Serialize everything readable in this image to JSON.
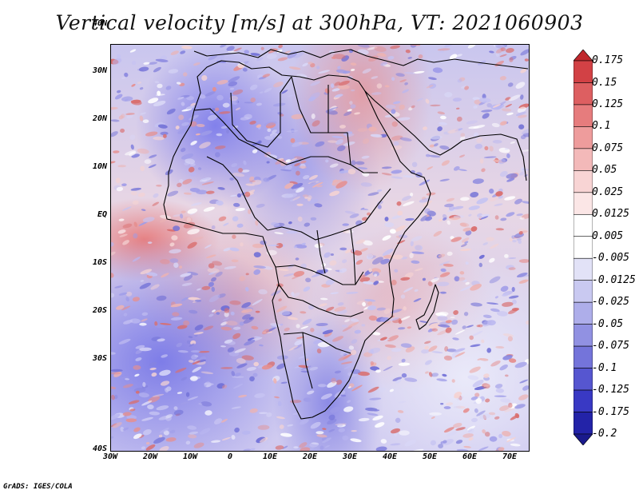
{
  "title": "Vertical velocity [m/s] at 300hPa, VT: 2021060903",
  "footer": "GrADS: IGES/COLA",
  "y_axis": {
    "ticks": [
      "40N",
      "30N",
      "20N",
      "10N",
      "EQ",
      "10S",
      "20S",
      "30S",
      "40S"
    ]
  },
  "x_axis": {
    "ticks": [
      "30W",
      "20W",
      "10W",
      "0",
      "10E",
      "20E",
      "30E",
      "40E",
      "50E",
      "60E",
      "70E"
    ]
  },
  "colorbar": {
    "labels": [
      "0.175",
      "0.15",
      "0.125",
      "0.1",
      "0.075",
      "0.05",
      "0.025",
      "0.0125",
      "0.005",
      "-0.005",
      "-0.0125",
      "-0.025",
      "-0.05",
      "-0.075",
      "-0.1",
      "-0.125",
      "-0.175",
      "-0.2"
    ],
    "colors": [
      "#c0282d",
      "#d24145",
      "#dd5f61",
      "#e67c7d",
      "#ee9c9c",
      "#f3b9b9",
      "#f8d4d4",
      "#fbe6e6",
      "#ffffff",
      "#ffffff",
      "#e2e2f7",
      "#c9c9f1",
      "#aeaeea",
      "#9191e2",
      "#7474da",
      "#5656d0",
      "#3939c4",
      "#2323a8",
      "#1a1a8c"
    ]
  },
  "map": {
    "region": "Africa and surrounding oceans",
    "lon_range": [
      -30,
      75
    ],
    "lat_range": [
      -40,
      45
    ]
  }
}
